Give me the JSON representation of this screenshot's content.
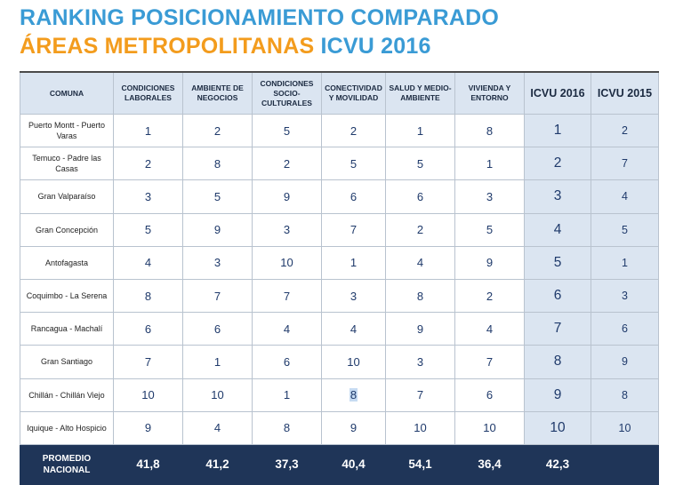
{
  "title": {
    "line1": "RANKING POSICIONAMIENTO COMPARADO",
    "line2_orange": "ÁREAS METROPOLITANAS",
    "line2_blue": "ICVU 2016"
  },
  "headers": [
    "COMUNA",
    "CONDICIONES LABORALES",
    "AMBIENTE DE NEGOCIOS",
    "CONDICIONES SOCIO-CULTURALES",
    "CONECTIVIDAD Y MOVILIDAD",
    "SALUD Y MEDIO-AMBIENTE",
    "VIVIENDA Y ENTORNO",
    "ICVU 2016",
    "ICVU 2015"
  ],
  "rows": [
    {
      "comuna": "Puerto Montt - Puerto Varas",
      "v": [
        "1",
        "2",
        "5",
        "2",
        "1",
        "8",
        "1",
        "2"
      ]
    },
    {
      "comuna": "Temuco - Padre las Casas",
      "v": [
        "2",
        "8",
        "2",
        "5",
        "5",
        "1",
        "2",
        "7"
      ]
    },
    {
      "comuna": "Gran Valparaíso",
      "v": [
        "3",
        "5",
        "9",
        "6",
        "6",
        "3",
        "3",
        "4"
      ]
    },
    {
      "comuna": "Gran Concepción",
      "v": [
        "5",
        "9",
        "3",
        "7",
        "2",
        "5",
        "4",
        "5"
      ]
    },
    {
      "comuna": "Antofagasta",
      "v": [
        "4",
        "3",
        "10",
        "1",
        "4",
        "9",
        "5",
        "1"
      ]
    },
    {
      "comuna": "Coquimbo - La Serena",
      "v": [
        "8",
        "7",
        "7",
        "3",
        "8",
        "2",
        "6",
        "3"
      ]
    },
    {
      "comuna": "Rancagua - Machalí",
      "v": [
        "6",
        "6",
        "4",
        "4",
        "9",
        "4",
        "7",
        "6"
      ]
    },
    {
      "comuna": "Gran Santiago",
      "v": [
        "7",
        "1",
        "6",
        "10",
        "3",
        "7",
        "8",
        "9"
      ]
    },
    {
      "comuna": "Chillán - Chillán Viejo",
      "v": [
        "10",
        "10",
        "1",
        "8",
        "7",
        "6",
        "9",
        "8"
      ]
    },
    {
      "comuna": "Iquique - Alto Hospicio",
      "v": [
        "9",
        "4",
        "8",
        "9",
        "10",
        "10",
        "10",
        "10"
      ]
    }
  ],
  "footer": {
    "label": "PROMEDIO NACIONAL",
    "values": [
      "41,8",
      "41,2",
      "37,3",
      "40,4",
      "54,1",
      "36,4",
      "42,3",
      ""
    ]
  }
}
